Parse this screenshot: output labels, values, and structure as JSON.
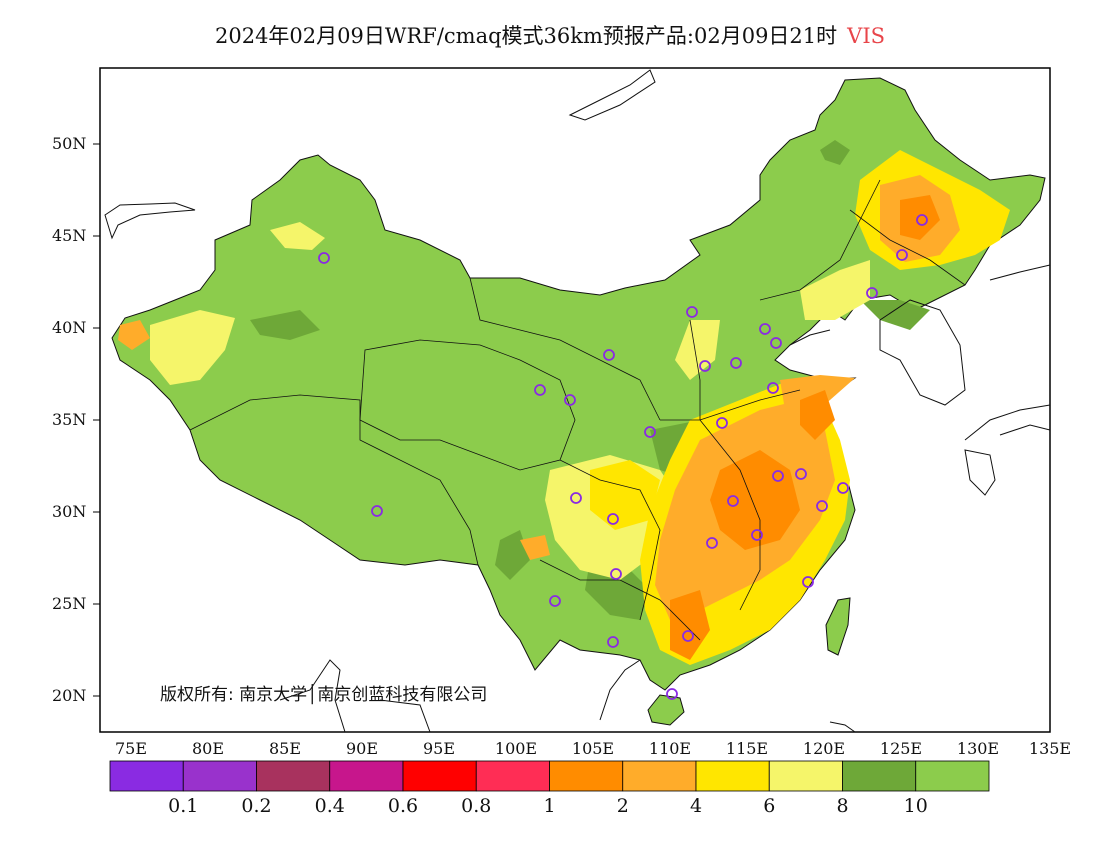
{
  "title": {
    "main": "2024年02月09日WRF/cmaq模式36km预报产品:02月09日21时",
    "variable": "VIS"
  },
  "axes": {
    "lat_labels": [
      "50N",
      "45N",
      "40N",
      "35N",
      "30N",
      "25N",
      "20N"
    ],
    "lon_labels": [
      "75E",
      "80E",
      "85E",
      "90E",
      "95E",
      "100E",
      "105E",
      "110E",
      "115E",
      "120E",
      "125E",
      "130E",
      "135E"
    ]
  },
  "copyright": "版权所有: 南京大学│南京创蓝科技有限公司",
  "legend": {
    "colors": [
      "#8a2be2",
      "#9932cc",
      "#a8325e",
      "#c7168c",
      "#ff0000",
      "#ff2d55",
      "#ff8c00",
      "#ffac2a",
      "#ffe600",
      "#f5f56a",
      "#6ea838",
      "#8ccc4c"
    ],
    "labels": [
      "0.1",
      "0.2",
      "0.4",
      "0.6",
      "0.8",
      "1",
      "2",
      "4",
      "6",
      "8",
      "10"
    ]
  },
  "colors": {
    "land_base": "#8ccc4c",
    "dark_green": "#6ea838",
    "yellow_light": "#f5f56a",
    "yellow": "#ffe600",
    "orange_light": "#ffac2a",
    "orange": "#ff8c00",
    "ocean": "#ffffff"
  },
  "station_color": "#8a2be2"
}
